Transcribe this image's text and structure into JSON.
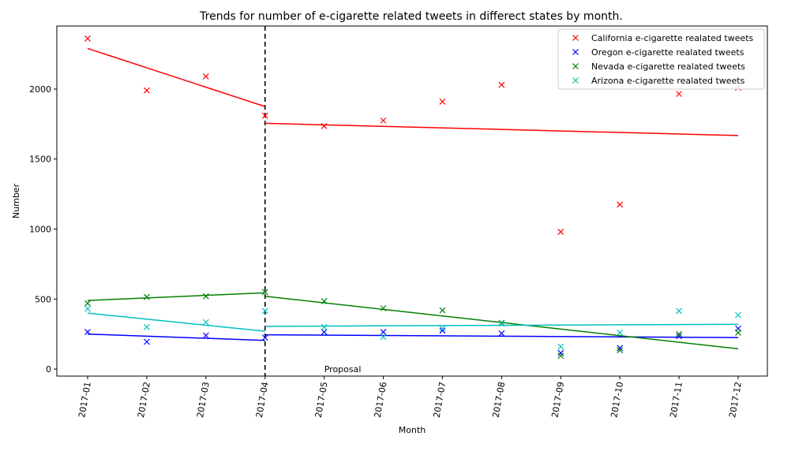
{
  "chart_data": {
    "type": "scatter",
    "title": "Trends for number of e-cigarette related tweets in differect states by month.",
    "xlabel": "Month",
    "ylabel": "Number",
    "categories": [
      "2017-01",
      "2017-02",
      "2017-03",
      "2017-04",
      "2017-05",
      "2017-06",
      "2017-07",
      "2017-08",
      "2017-09",
      "2017-10",
      "2017-11",
      "2017-12"
    ],
    "ylim": [
      -50,
      2450
    ],
    "yticks": [
      0,
      500,
      1000,
      1500,
      2000
    ],
    "grid": false,
    "legend_position": "top-right",
    "annotation": {
      "text": "Proposal",
      "x": "2017-04"
    },
    "series": [
      {
        "name": "California e-cigarette realated tweets",
        "color": "#ff0000",
        "values": [
          2360,
          1990,
          2090,
          1810,
          1735,
          1775,
          1910,
          2030,
          980,
          1175,
          1965,
          2010
        ],
        "trend_before": [
          2290,
          1875
        ],
        "trend_after": [
          1755,
          1668
        ]
      },
      {
        "name": "Oregon e-cigarette realated tweets",
        "color": "#0000ff",
        "values": [
          265,
          195,
          240,
          225,
          265,
          265,
          275,
          255,
          115,
          150,
          235,
          290
        ],
        "trend_before": [
          250,
          205
        ],
        "trend_after": [
          245,
          225
        ]
      },
      {
        "name": "Nevada e-cigarette realated tweets",
        "color": "#008000",
        "values": [
          470,
          515,
          520,
          550,
          485,
          435,
          420,
          330,
          95,
          135,
          250,
          260
        ],
        "trend_before": [
          490,
          545
        ],
        "trend_after": [
          520,
          145
        ]
      },
      {
        "name": "Arizona e-cigarette realated tweets",
        "color": "#00bfbf",
        "values": [
          430,
          300,
          335,
          415,
          300,
          230,
          290,
          325,
          160,
          260,
          415,
          385
        ],
        "trend_before": [
          400,
          270
        ],
        "trend_after": [
          305,
          320
        ]
      }
    ]
  }
}
